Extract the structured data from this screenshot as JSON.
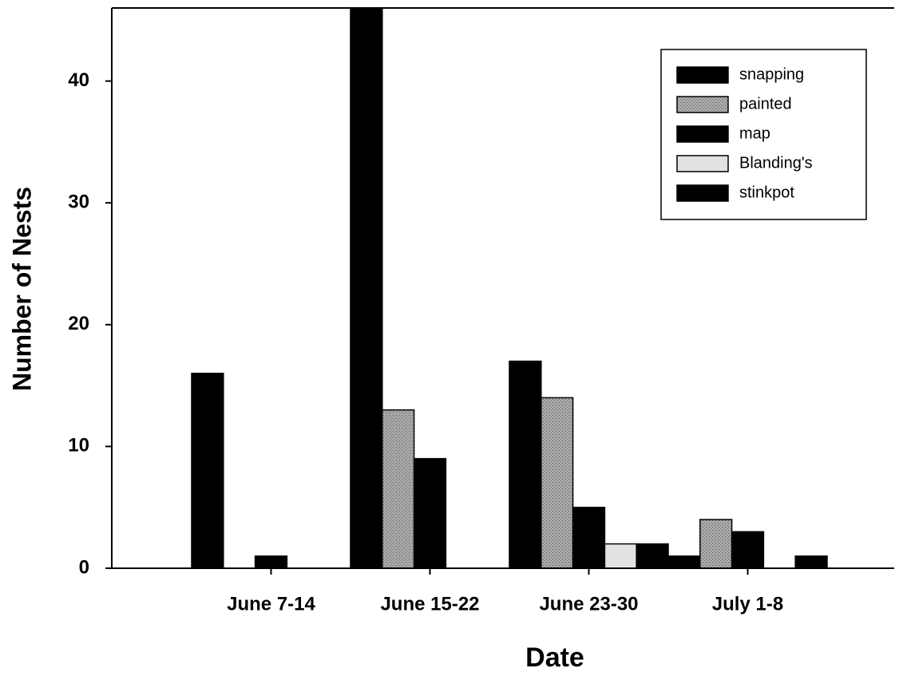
{
  "chart_data": {
    "type": "bar",
    "x_label": "Date",
    "y_label": "Number of Nests",
    "categories": [
      "June 7-14",
      "June 15-22",
      "June 23-30",
      "July 1-8"
    ],
    "series": [
      {
        "name": "snapping",
        "color": "#000000",
        "values": [
          16,
          46,
          17,
          1
        ]
      },
      {
        "name": "painted",
        "color": "#9a9a9a",
        "values": [
          0,
          13,
          14,
          4
        ]
      },
      {
        "name": "map",
        "color": "#000000",
        "values": [
          1,
          9,
          5,
          3
        ]
      },
      {
        "name": "Blanding's",
        "color": "#e2e2e2",
        "values": [
          0,
          0,
          2,
          0
        ]
      },
      {
        "name": "stinkpot",
        "color": "#000000",
        "values": [
          0,
          0,
          2,
          1
        ]
      }
    ],
    "ylim": [
      0,
      46
    ],
    "yticks": [
      0,
      10,
      20,
      30,
      40
    ],
    "grid": false,
    "legend": "upper right"
  }
}
